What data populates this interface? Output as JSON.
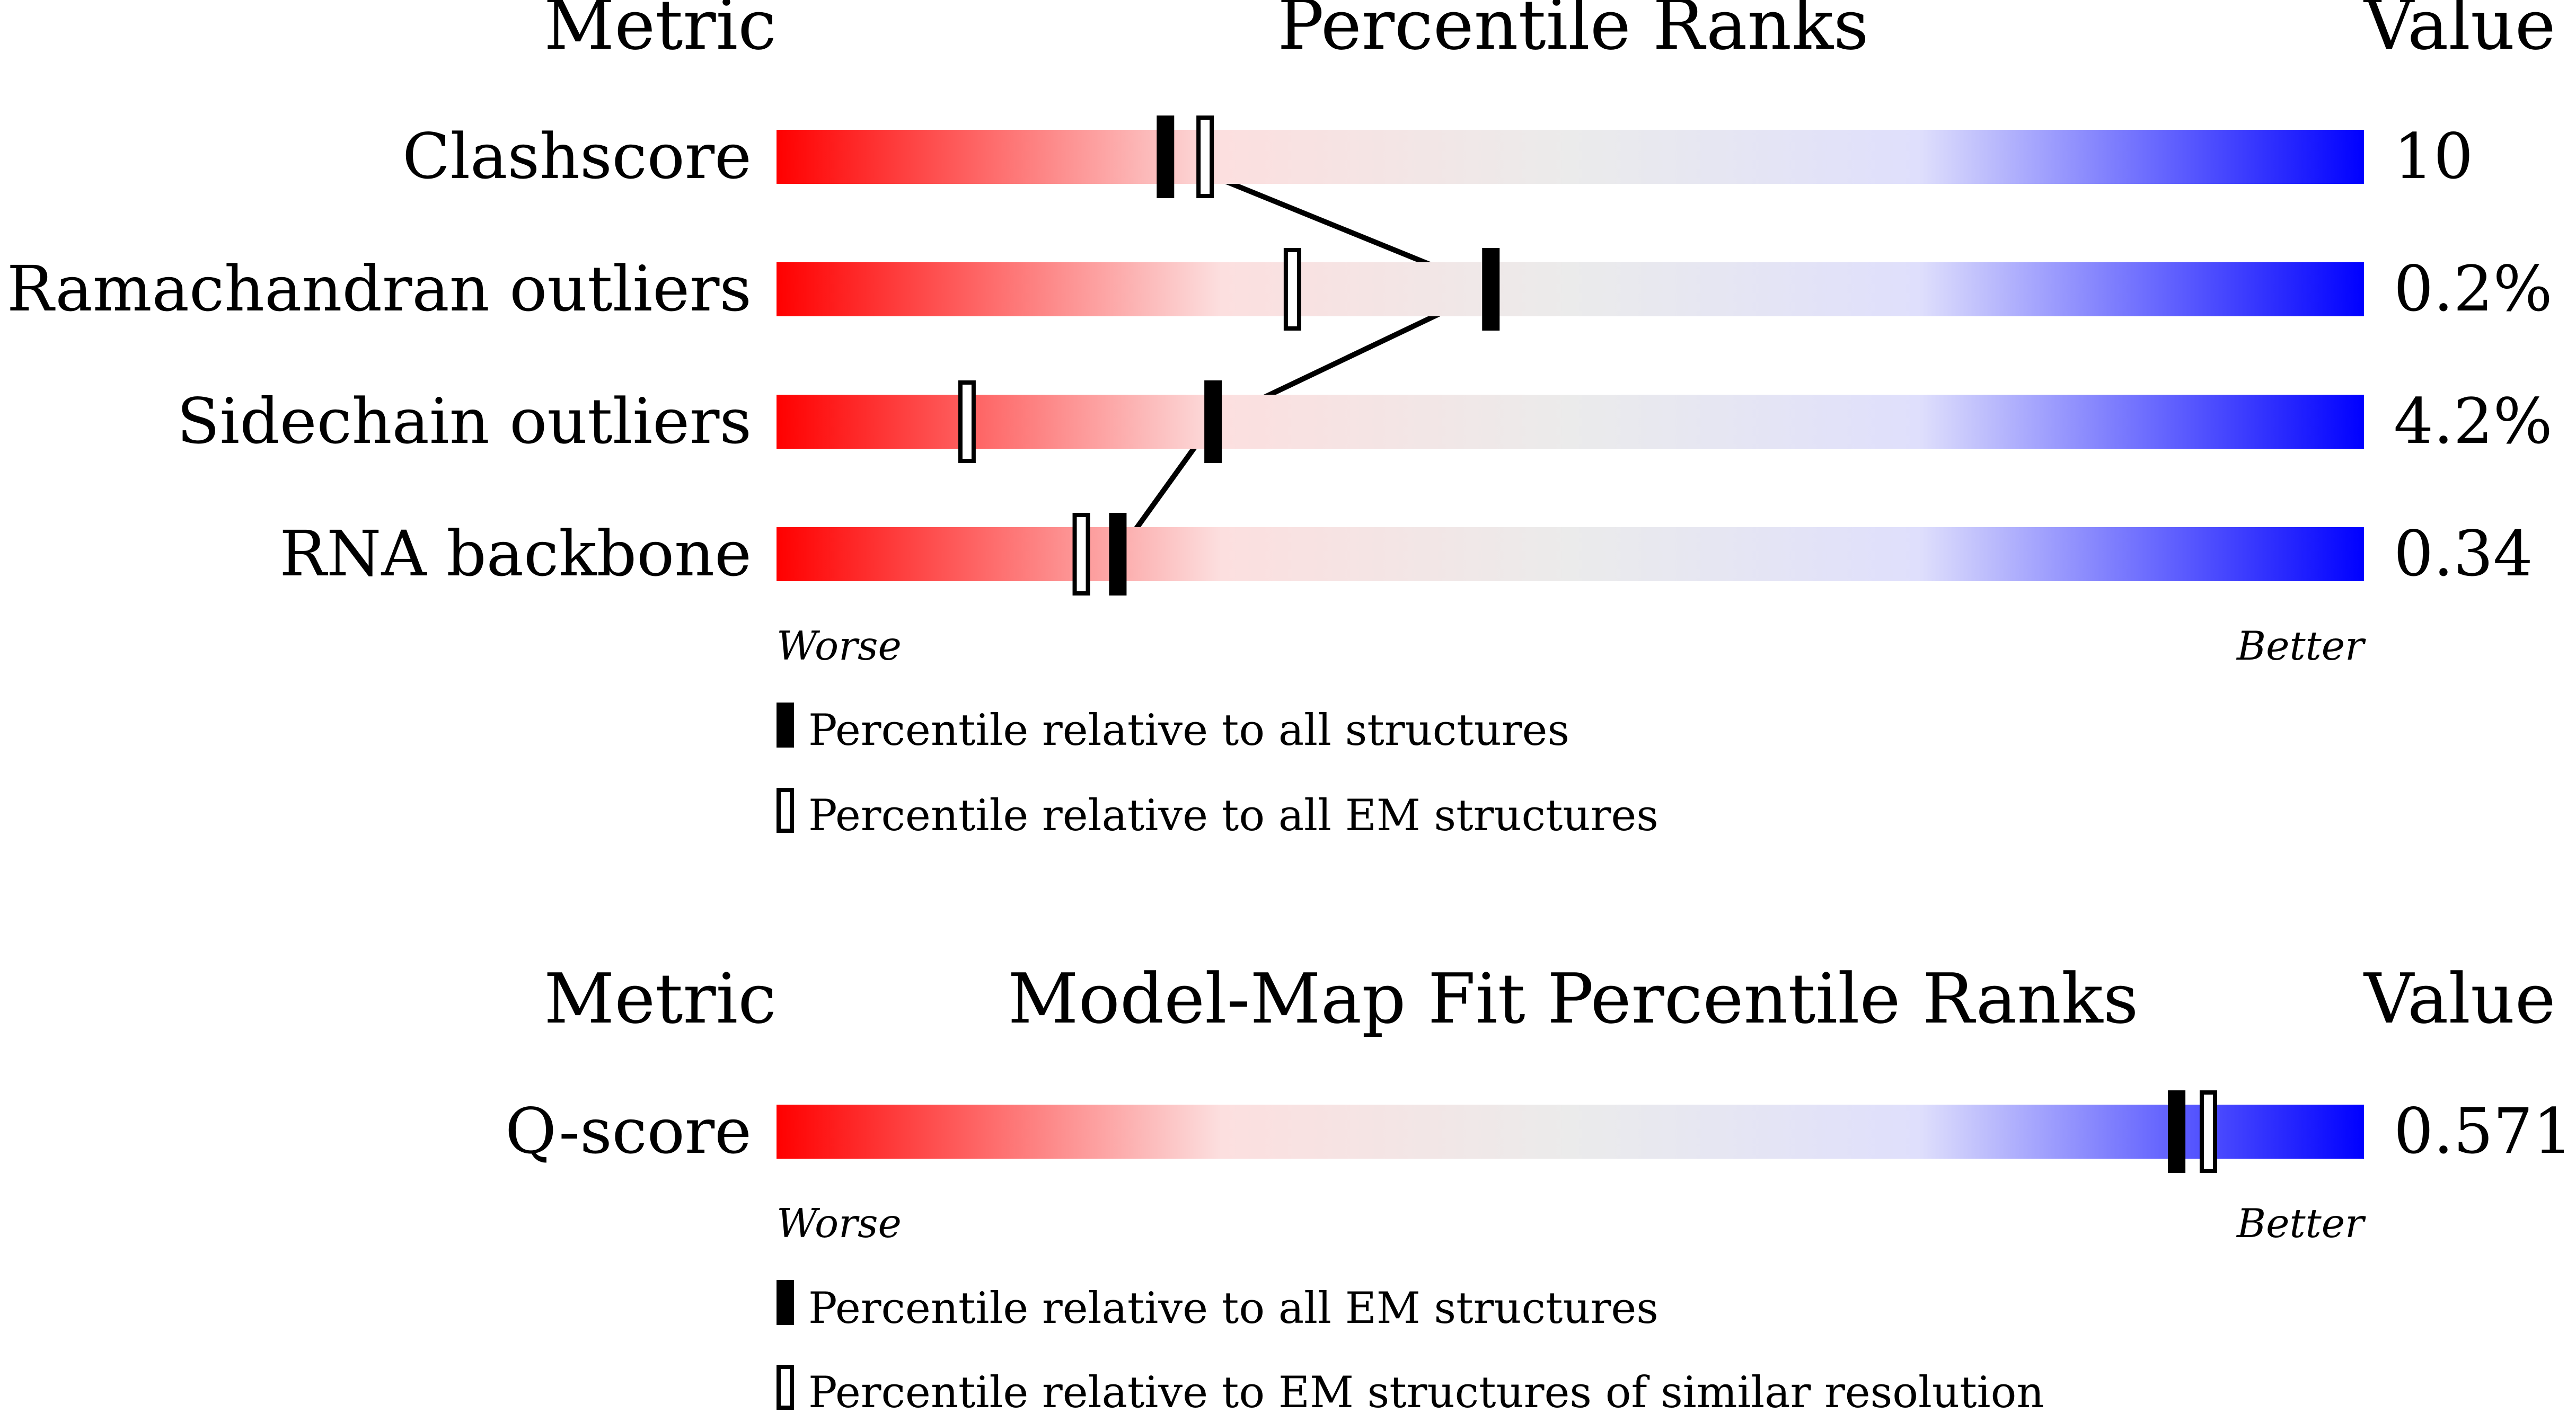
{
  "colors": {
    "worse": "#ff0000",
    "light_red": "#fcdfdf",
    "mid_grey": "#ebebeb",
    "light_blue": "#dfdffc",
    "better": "#0000ff",
    "marker": "#000000"
  },
  "chart_data": [
    {
      "type": "percentile-slider",
      "header": {
        "metric": "Metric",
        "title": "Percentile Ranks",
        "value": "Value"
      },
      "axis": {
        "range": [
          0,
          100
        ],
        "worse_label": "Worse",
        "better_label": "Better"
      },
      "rows": [
        {
          "metric": "Clashscore",
          "value": "10",
          "percentile_all": 24.5,
          "percentile_em": 27
        },
        {
          "metric": "Ramachandran outliers",
          "value": "0.2%",
          "percentile_all": 45,
          "percentile_em": 32.5
        },
        {
          "metric": "Sidechain outliers",
          "value": "4.2%",
          "percentile_all": 27.5,
          "percentile_em": 12
        },
        {
          "metric": "RNA backbone",
          "value": "0.34",
          "percentile_all": 21.5,
          "percentile_em": 19.2
        }
      ],
      "legend": {
        "filled": "Percentile relative to all structures",
        "open": "Percentile relative to all EM structures"
      }
    },
    {
      "type": "percentile-slider",
      "header": {
        "metric": "Metric",
        "title": "Model-Map Fit Percentile Ranks",
        "value": "Value"
      },
      "axis": {
        "range": [
          0,
          100
        ],
        "worse_label": "Worse",
        "better_label": "Better"
      },
      "rows": [
        {
          "metric": "Q-score",
          "value": "0.571",
          "percentile_all": 88.2,
          "percentile_em": 90.2
        }
      ],
      "legend": {
        "filled": "Percentile relative to all EM structures",
        "open": "Percentile relative to EM structures of similar resolution"
      }
    }
  ]
}
